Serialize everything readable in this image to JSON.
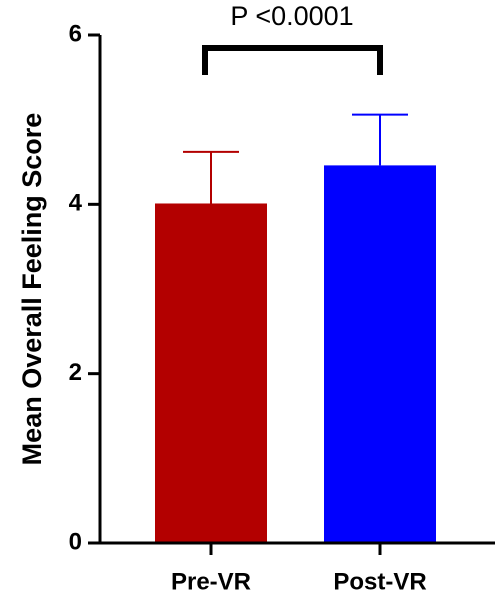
{
  "chart_data": {
    "type": "bar",
    "y_label": "Mean Overall Feeling Score",
    "annotation": "P <0.0001",
    "categories": [
      "Pre-VR",
      "Post-VR"
    ],
    "values": [
      4.01,
      4.46
    ],
    "errors": [
      0.61,
      0.6
    ],
    "colors": [
      "#b30000",
      "#0000ff"
    ],
    "ylim": [
      0,
      6
    ],
    "yticks": [
      0,
      2,
      4,
      6
    ]
  }
}
